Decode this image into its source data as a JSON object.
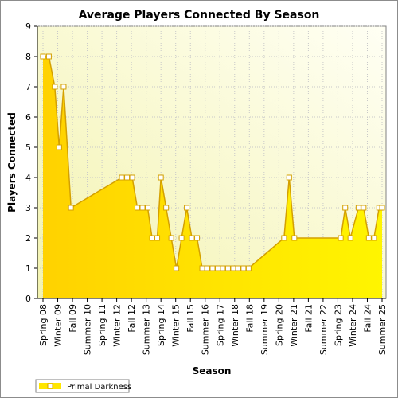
{
  "chart_data": {
    "type": "area",
    "title": "Average Players Connected By Season",
    "xlabel": "Season",
    "ylabel": "Players Connected",
    "ylim": [
      0,
      9
    ],
    "yticks": [
      0,
      1,
      2,
      3,
      4,
      5,
      6,
      7,
      8,
      9
    ],
    "xtick_labels": [
      "Spring 08",
      "Winter 09",
      "Fall 09",
      "Summer 10",
      "Spring 11",
      "Winter 12",
      "Fall 12",
      "Summer 13",
      "Spring 14",
      "Winter 15",
      "Fall 15",
      "Summer 16",
      "Spring 17",
      "Winter 18",
      "Fall 18",
      "Summer 19",
      "Spring 20",
      "Winter 21",
      "Fall 21",
      "Summer 22",
      "Spring 23",
      "Winter 24",
      "Fall 24",
      "Summer 25"
    ],
    "grid": true,
    "legend_position": "bottom-left",
    "series": [
      {
        "name": "Primal Darkness",
        "color": "#ffe600",
        "line_color": "#d4a000",
        "points": [
          {
            "x": 0.0,
            "y": 8
          },
          {
            "x": 0.4,
            "y": 8
          },
          {
            "x": 0.8,
            "y": 7
          },
          {
            "x": 1.1,
            "y": 5
          },
          {
            "x": 1.4,
            "y": 7
          },
          {
            "x": 1.9,
            "y": 3
          },
          {
            "x": 5.35,
            "y": 4
          },
          {
            "x": 5.7,
            "y": 4
          },
          {
            "x": 6.05,
            "y": 4
          },
          {
            "x": 6.4,
            "y": 3
          },
          {
            "x": 6.75,
            "y": 3
          },
          {
            "x": 7.1,
            "y": 3
          },
          {
            "x": 7.4,
            "y": 2
          },
          {
            "x": 7.75,
            "y": 2
          },
          {
            "x": 8.0,
            "y": 4
          },
          {
            "x": 8.35,
            "y": 3
          },
          {
            "x": 8.7,
            "y": 2
          },
          {
            "x": 9.05,
            "y": 1
          },
          {
            "x": 9.4,
            "y": 2
          },
          {
            "x": 9.75,
            "y": 3
          },
          {
            "x": 10.1,
            "y": 2
          },
          {
            "x": 10.45,
            "y": 2
          },
          {
            "x": 10.8,
            "y": 1
          },
          {
            "x": 11.15,
            "y": 1
          },
          {
            "x": 11.5,
            "y": 1
          },
          {
            "x": 11.85,
            "y": 1
          },
          {
            "x": 12.2,
            "y": 1
          },
          {
            "x": 12.55,
            "y": 1
          },
          {
            "x": 12.9,
            "y": 1
          },
          {
            "x": 13.25,
            "y": 1
          },
          {
            "x": 13.6,
            "y": 1
          },
          {
            "x": 13.95,
            "y": 1
          },
          {
            "x": 16.35,
            "y": 2
          },
          {
            "x": 16.7,
            "y": 4
          },
          {
            "x": 17.05,
            "y": 2
          },
          {
            "x": 20.2,
            "y": 2
          },
          {
            "x": 20.5,
            "y": 3
          },
          {
            "x": 20.85,
            "y": 2
          },
          {
            "x": 21.4,
            "y": 3
          },
          {
            "x": 21.75,
            "y": 3
          },
          {
            "x": 22.1,
            "y": 2
          },
          {
            "x": 22.45,
            "y": 2
          },
          {
            "x": 22.8,
            "y": 3
          },
          {
            "x": 23.0,
            "y": 3
          }
        ]
      }
    ]
  }
}
